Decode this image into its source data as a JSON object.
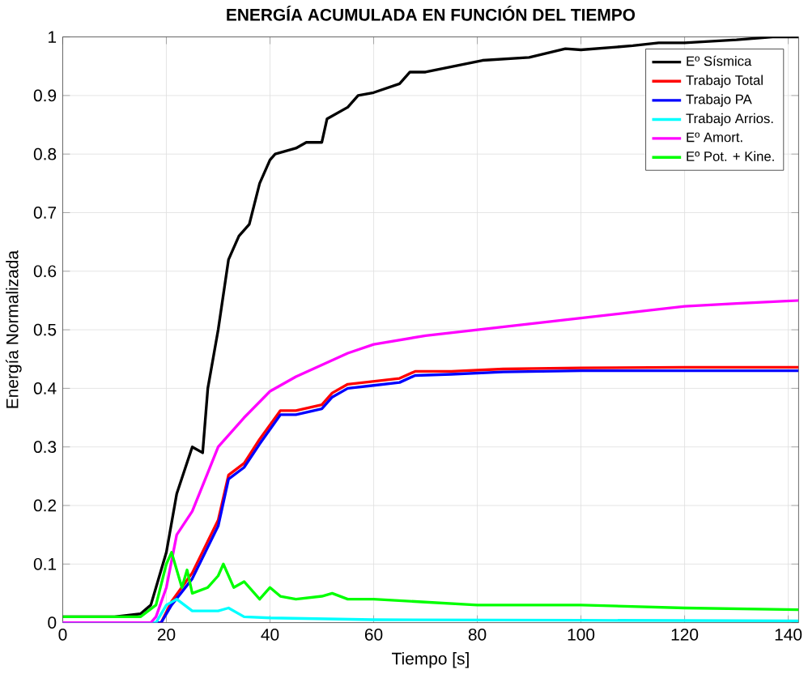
{
  "chart_data": {
    "type": "line",
    "title": "ENERGÍA ACUMULADA EN FUNCIÓN DEL TIEMPO",
    "xlabel": "Tiempo [s]",
    "ylabel": "Energía Normalizada",
    "xlim": [
      0,
      142
    ],
    "ylim": [
      0,
      1
    ],
    "xticks": [
      0,
      20,
      40,
      60,
      80,
      100,
      120,
      140
    ],
    "yticks": [
      0,
      0.1,
      0.2,
      0.3,
      0.4,
      0.5,
      0.6,
      0.7,
      0.8,
      0.9,
      1
    ],
    "grid": true,
    "legend": "top right",
    "line_style": "solid",
    "marker": "none",
    "series": [
      {
        "name": "Eº Sísmica",
        "color": "#000000",
        "x": [
          0,
          10,
          15,
          17,
          18,
          20,
          22,
          25,
          27,
          28,
          30,
          32,
          34,
          36,
          38,
          40,
          41,
          45,
          47,
          50,
          51,
          55,
          57,
          60,
          65,
          67,
          70,
          81,
          90,
          97,
          100,
          110,
          115,
          120,
          130,
          137,
          142
        ],
        "values": [
          0.01,
          0.01,
          0.015,
          0.03,
          0.06,
          0.12,
          0.22,
          0.3,
          0.29,
          0.4,
          0.5,
          0.62,
          0.66,
          0.68,
          0.75,
          0.79,
          0.8,
          0.81,
          0.82,
          0.82,
          0.86,
          0.88,
          0.9,
          0.905,
          0.92,
          0.94,
          0.94,
          0.96,
          0.965,
          0.98,
          0.978,
          0.985,
          0.99,
          0.99,
          0.995,
          1.0,
          1.0
        ]
      },
      {
        "name": "Trabajo Total",
        "color": "#ff0000",
        "x": [
          0,
          19,
          21,
          25,
          30,
          32,
          35,
          38,
          42,
          45,
          50,
          52,
          55,
          60,
          65,
          68,
          75,
          85,
          100,
          120,
          142
        ],
        "values": [
          0,
          0,
          0.036,
          0.085,
          0.175,
          0.252,
          0.272,
          0.313,
          0.362,
          0.362,
          0.372,
          0.392,
          0.407,
          0.412,
          0.417,
          0.429,
          0.429,
          0.433,
          0.435,
          0.436,
          0.436
        ]
      },
      {
        "name": "Trabajo PA",
        "color": "#0000ff",
        "x": [
          0,
          19,
          21,
          25,
          30,
          32,
          35,
          38,
          42,
          45,
          50,
          52,
          55,
          60,
          65,
          68,
          75,
          85,
          100,
          120,
          142
        ],
        "values": [
          0,
          0,
          0.03,
          0.075,
          0.165,
          0.245,
          0.265,
          0.305,
          0.355,
          0.355,
          0.365,
          0.385,
          0.4,
          0.405,
          0.41,
          0.422,
          0.424,
          0.428,
          0.43,
          0.43,
          0.43
        ]
      },
      {
        "name": "Trabajo Arrios.",
        "color": "#00ffff",
        "x": [
          0,
          18,
          20,
          22,
          25,
          30,
          32,
          35,
          40,
          60,
          100,
          142
        ],
        "values": [
          0,
          0,
          0.03,
          0.04,
          0.02,
          0.02,
          0.025,
          0.01,
          0.008,
          0.005,
          0.004,
          0.003
        ]
      },
      {
        "name": "Eº Amort.",
        "color": "#ff00ff",
        "x": [
          0,
          17,
          18,
          20,
          22,
          25,
          30,
          35,
          40,
          45,
          50,
          55,
          60,
          70,
          80,
          90,
          100,
          110,
          120,
          130,
          142
        ],
        "values": [
          0,
          0,
          0.01,
          0.06,
          0.15,
          0.19,
          0.3,
          0.35,
          0.395,
          0.42,
          0.44,
          0.46,
          0.475,
          0.49,
          0.5,
          0.51,
          0.52,
          0.53,
          0.54,
          0.545,
          0.55
        ]
      },
      {
        "name": "Eº Pot. + Kine.",
        "color": "#00ff00",
        "x": [
          0,
          15,
          18,
          20,
          21,
          23,
          24,
          25,
          28,
          30,
          31,
          33,
          35,
          38,
          40,
          42,
          45,
          50,
          52,
          55,
          60,
          70,
          80,
          100,
          120,
          142
        ],
        "values": [
          0.01,
          0.01,
          0.03,
          0.1,
          0.12,
          0.06,
          0.09,
          0.05,
          0.06,
          0.08,
          0.1,
          0.06,
          0.07,
          0.04,
          0.06,
          0.045,
          0.04,
          0.045,
          0.05,
          0.04,
          0.04,
          0.035,
          0.03,
          0.03,
          0.025,
          0.022
        ]
      }
    ]
  }
}
